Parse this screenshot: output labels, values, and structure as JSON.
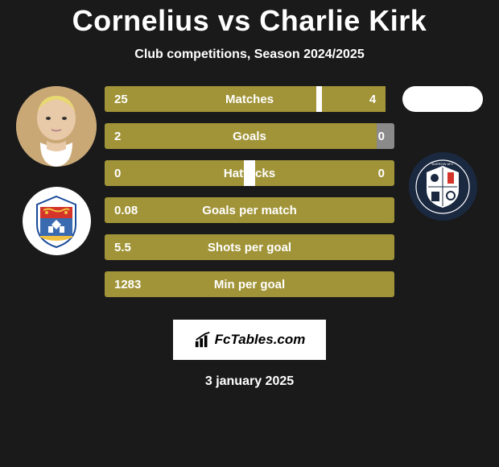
{
  "title": "Cornelius vs Charlie Kirk",
  "subtitle": "Club competitions, Season 2024/2025",
  "date": "3 january 2025",
  "fctables_label": "FcTables.com",
  "colors": {
    "bar_olive": "#a19438",
    "bar_gray": "#8a8a8a",
    "bar_white_gap": "#ffffff",
    "background": "#1a1a1a",
    "text": "#ffffff"
  },
  "stats": [
    {
      "label": "Matches",
      "left_value": "25",
      "right_value": "4",
      "left_color": "#a19438",
      "right_color": "#a19438",
      "left_width_pct": 73,
      "right_width_pct": 22,
      "gap_pct": 2,
      "gap_color": "#ffffff"
    },
    {
      "label": "Goals",
      "left_value": "2",
      "right_value": "0",
      "left_color": "#a19438",
      "right_color": "#8a8a8a",
      "left_width_pct": 94,
      "right_width_pct": 6,
      "gap_pct": 0,
      "gap_color": "#ffffff"
    },
    {
      "label": "Hattricks",
      "left_value": "0",
      "right_value": "0",
      "left_color": "#a19438",
      "right_color": "#a19438",
      "left_width_pct": 48,
      "right_width_pct": 48,
      "gap_pct": 4,
      "gap_color": "#ffffff"
    },
    {
      "label": "Goals per match",
      "left_value": "0.08",
      "right_value": "",
      "left_color": "#a19438",
      "right_color": "#8a8a8a",
      "left_width_pct": 100,
      "right_width_pct": 0,
      "gap_pct": 0,
      "gap_color": "#ffffff"
    },
    {
      "label": "Shots per goal",
      "left_value": "5.5",
      "right_value": "",
      "left_color": "#a19438",
      "right_color": "#8a8a8a",
      "left_width_pct": 100,
      "right_width_pct": 0,
      "gap_pct": 0,
      "gap_color": "#ffffff"
    },
    {
      "label": "Min per goal",
      "left_value": "1283",
      "right_value": "",
      "left_color": "#a19438",
      "right_color": "#8a8a8a",
      "left_width_pct": 100,
      "right_width_pct": 0,
      "gap_pct": 0,
      "gap_color": "#ffffff"
    }
  ]
}
